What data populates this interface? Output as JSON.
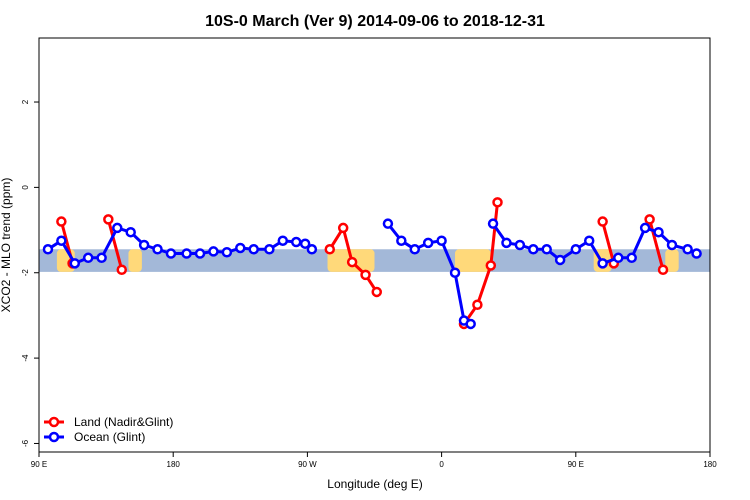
{
  "chart_data": {
    "type": "line",
    "title": "10S-0 March (Ver 9)   2014-09-06 to 2018-12-31",
    "xlabel": "Longitude (deg E)",
    "ylabel": "XCO2 - MLO trend (ppm)",
    "xlim": [
      90,
      390
    ],
    "ylim": [
      -6.2,
      3.5
    ],
    "xticks": [
      {
        "value": 90,
        "label": "90 E"
      },
      {
        "value": 150,
        "label": "180"
      },
      {
        "value": 210,
        "label": "90 W"
      },
      {
        "value": 270,
        "label": "0"
      },
      {
        "value": 330,
        "label": "90 E"
      },
      {
        "value": 390,
        "label": "180"
      }
    ],
    "yticks": [
      {
        "value": 2,
        "label": "2"
      },
      {
        "value": 0,
        "label": "0"
      },
      {
        "value": -2,
        "label": "-2"
      },
      {
        "value": -4,
        "label": "-4"
      },
      {
        "value": -6,
        "label": "-6"
      }
    ],
    "band": {
      "y0": -1.45,
      "y1": -1.98,
      "color": "#a3b8d8"
    },
    "land_color": "#ffd97a",
    "land_patches": [
      {
        "x0": 98,
        "x1": 106
      },
      {
        "x0": 130,
        "x1": 136
      },
      {
        "x0": 219,
        "x1": 240
      },
      {
        "x0": 276,
        "x1": 292
      },
      {
        "x0": 338,
        "x1": 346
      },
      {
        "x0": 370,
        "x1": 376
      }
    ],
    "legend_position": "bottom-left",
    "series": [
      {
        "name": "Land (Nadir&Glint)",
        "color": "#ff0000",
        "segments": [
          [
            [
              100,
              -0.8
            ],
            [
              105,
              -1.78
            ]
          ],
          [
            [
              121,
              -0.75
            ],
            [
              127,
              -1.93
            ]
          ],
          [
            [
              220,
              -1.45
            ],
            [
              226,
              -0.95
            ],
            [
              230,
              -1.75
            ],
            [
              236,
              -2.05
            ],
            [
              241,
              -2.45
            ]
          ],
          [
            [
              280,
              -3.2
            ],
            [
              286,
              -2.75
            ],
            [
              292,
              -1.83
            ],
            [
              295,
              -0.35
            ]
          ],
          [
            [
              342,
              -0.8
            ],
            [
              347,
              -1.78
            ]
          ],
          [
            [
              363,
              -0.75
            ],
            [
              369,
              -1.93
            ]
          ]
        ]
      },
      {
        "name": "Ocean (Glint)",
        "color": "#0000ff",
        "segments": [
          [
            [
              94,
              -1.45
            ],
            [
              100,
              -1.25
            ],
            [
              106,
              -1.78
            ],
            [
              112,
              -1.65
            ],
            [
              118,
              -1.65
            ],
            [
              125,
              -0.95
            ],
            [
              131,
              -1.05
            ],
            [
              137,
              -1.35
            ],
            [
              143,
              -1.45
            ],
            [
              149,
              -1.55
            ],
            [
              156,
              -1.55
            ],
            [
              162,
              -1.55
            ],
            [
              168,
              -1.5
            ],
            [
              174,
              -1.52
            ],
            [
              180,
              -1.42
            ],
            [
              186,
              -1.45
            ],
            [
              193,
              -1.45
            ],
            [
              199,
              -1.25
            ],
            [
              205,
              -1.28
            ],
            [
              209,
              -1.32
            ],
            [
              212,
              -1.45
            ]
          ],
          [
            [
              246,
              -0.85
            ],
            [
              252,
              -1.25
            ],
            [
              258,
              -1.45
            ],
            [
              264,
              -1.3
            ],
            [
              270,
              -1.25
            ],
            [
              276,
              -2.0
            ],
            [
              280,
              -3.12
            ],
            [
              283,
              -3.2
            ]
          ],
          [
            [
              293,
              -0.85
            ],
            [
              299,
              -1.3
            ],
            [
              305,
              -1.35
            ],
            [
              311,
              -1.45
            ],
            [
              317,
              -1.45
            ],
            [
              323,
              -1.7
            ],
            [
              330,
              -1.45
            ],
            [
              336,
              -1.25
            ],
            [
              342,
              -1.78
            ],
            [
              349,
              -1.65
            ],
            [
              355,
              -1.65
            ],
            [
              361,
              -0.95
            ],
            [
              367,
              -1.05
            ],
            [
              373,
              -1.35
            ],
            [
              380,
              -1.45
            ],
            [
              384,
              -1.55
            ]
          ]
        ]
      }
    ]
  }
}
